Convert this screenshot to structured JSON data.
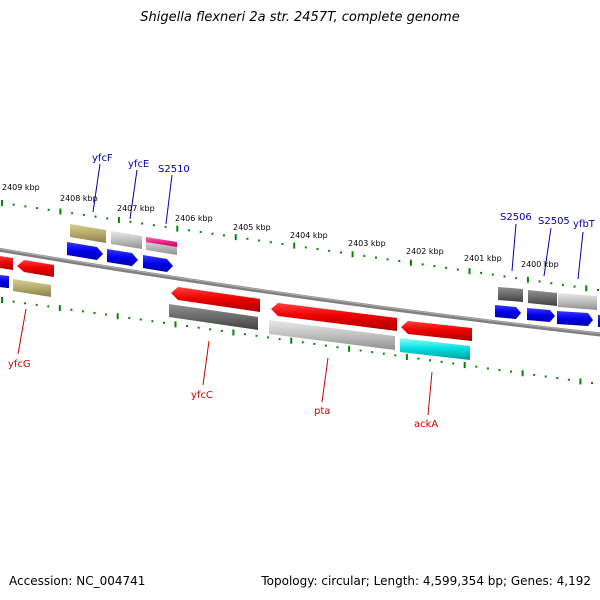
{
  "title": "Shigella flexneri 2a str. 2457T, complete genome",
  "footer": {
    "accession": "Accession: NC_004741",
    "summary": "Topology: circular; Length: 4,599,354 bp; Genes: 4,192"
  },
  "scale_labels": [
    "2409 kbp",
    "2408 kbp",
    "2407 kbp",
    "2406 kbp",
    "2405 kbp",
    "2404 kbp",
    "2403 kbp",
    "2402 kbp",
    "2401 kbp",
    "2400 kbp"
  ],
  "gene_labels": {
    "top": [
      "yfcF",
      "yfcE",
      "S2510",
      "S2506",
      "S2505",
      "yfbT"
    ],
    "bottom": [
      "yfcG",
      "yfcC",
      "pta",
      "ackA"
    ]
  },
  "colors": {
    "label_top": "#0000aa",
    "label_bottom": "#cc0000",
    "tick": "#008800",
    "backbone": "#808080",
    "red": "#ee0000",
    "blue": "#0000ee",
    "olive": "#b5aa6a",
    "light_gray": "#c0c0c0",
    "dark_gray": "#6a6a6a",
    "magenta": "#ee2288",
    "cyan": "#00dddd"
  }
}
